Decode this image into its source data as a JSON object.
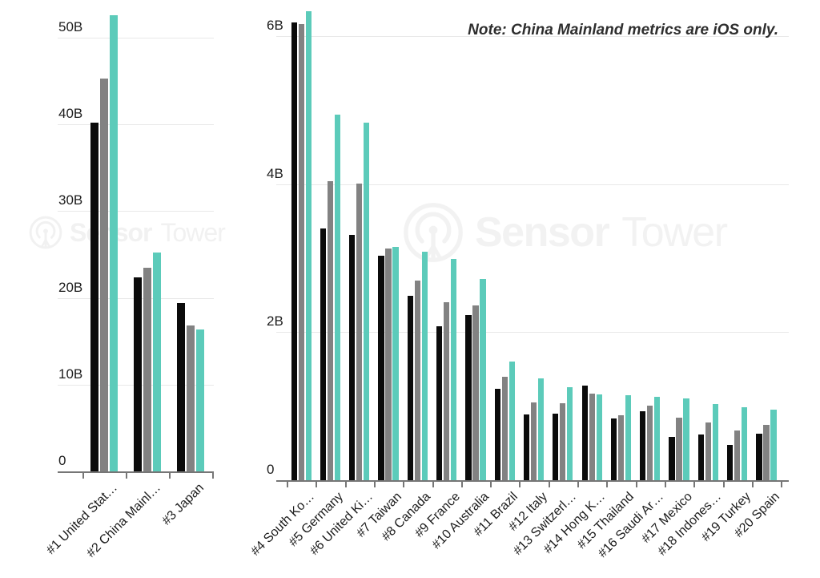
{
  "note": "Note: China Mainland metrics are iOS only.",
  "watermark": {
    "brand_bold": "Sensor",
    "brand_light": "Tower"
  },
  "units": "B = billions",
  "colors": {
    "series_black": "#0B0B0B",
    "series_gray": "#828282",
    "series_teal": "#5CCBBA",
    "gridline": "#E8E8E8",
    "axis": "#767676",
    "text": "#1C1C1C",
    "note_text": "#2E2E2E",
    "watermark": "#F1F1F1"
  },
  "chart_data": [
    {
      "id": "left",
      "type": "bar",
      "title": "",
      "xlabel": "",
      "ylabel": "",
      "grid": true,
      "legend": "none",
      "ylim": [
        0,
        54.5
      ],
      "yticks": [
        {
          "v": 0,
          "label": "0"
        },
        {
          "v": 10,
          "label": "10B"
        },
        {
          "v": 20,
          "label": "20B"
        },
        {
          "v": 30,
          "label": "30B"
        },
        {
          "v": 40,
          "label": "40B"
        },
        {
          "v": 50,
          "label": "50B"
        }
      ],
      "categories": [
        "#1 United Stat…",
        "#2 China Mainl…",
        "#3 Japan"
      ],
      "series": [
        {
          "name": "series-black",
          "color": "#0B0B0B",
          "values": [
            40.2,
            22.4,
            19.4
          ]
        },
        {
          "name": "series-gray",
          "color": "#828282",
          "values": [
            45.3,
            23.5,
            16.8
          ]
        },
        {
          "name": "series-teal",
          "color": "#5CCBBA",
          "values": [
            52.6,
            25.2,
            16.4
          ]
        }
      ]
    },
    {
      "id": "right",
      "type": "bar",
      "title": "",
      "xlabel": "",
      "ylabel": "",
      "grid": true,
      "legend": "none",
      "ylim": [
        0,
        6.5
      ],
      "yticks": [
        {
          "v": 0,
          "label": "0"
        },
        {
          "v": 2,
          "label": "2B"
        },
        {
          "v": 4,
          "label": "4B"
        },
        {
          "v": 6,
          "label": "6B"
        }
      ],
      "categories": [
        "#4 South Ko…",
        "#5 Germany",
        "#6 United Ki…",
        "#7 Taiwan",
        "#8 Canada",
        "#9 France",
        "#10 Australia",
        "#11 Brazil",
        "#12 Italy",
        "#13 Switzerl…",
        "#14 Hong K…",
        "#15 Thailand",
        "#16 Saudi Ar…",
        "#17 Mexico",
        "#18 Indones…",
        "#19 Turkey",
        "#20 Spain"
      ],
      "series": [
        {
          "name": "series-black",
          "color": "#0B0B0B",
          "values": [
            6.19,
            3.4,
            3.32,
            3.03,
            2.49,
            2.08,
            2.23,
            1.24,
            0.89,
            0.9,
            1.28,
            0.83,
            0.93,
            0.59,
            0.62,
            0.48,
            0.63
          ]
        },
        {
          "name": "series-gray",
          "color": "#828282",
          "values": [
            6.17,
            4.04,
            4.01,
            3.13,
            2.7,
            2.4,
            2.36,
            1.4,
            1.05,
            1.04,
            1.17,
            0.88,
            1.01,
            0.85,
            0.78,
            0.67,
            0.75
          ]
        },
        {
          "name": "series-teal",
          "color": "#5CCBBA",
          "values": [
            6.34,
            4.94,
            4.83,
            3.15,
            3.09,
            2.99,
            2.72,
            1.6,
            1.38,
            1.26,
            1.16,
            1.15,
            1.13,
            1.11,
            1.03,
            0.99,
            0.95
          ]
        }
      ]
    }
  ]
}
